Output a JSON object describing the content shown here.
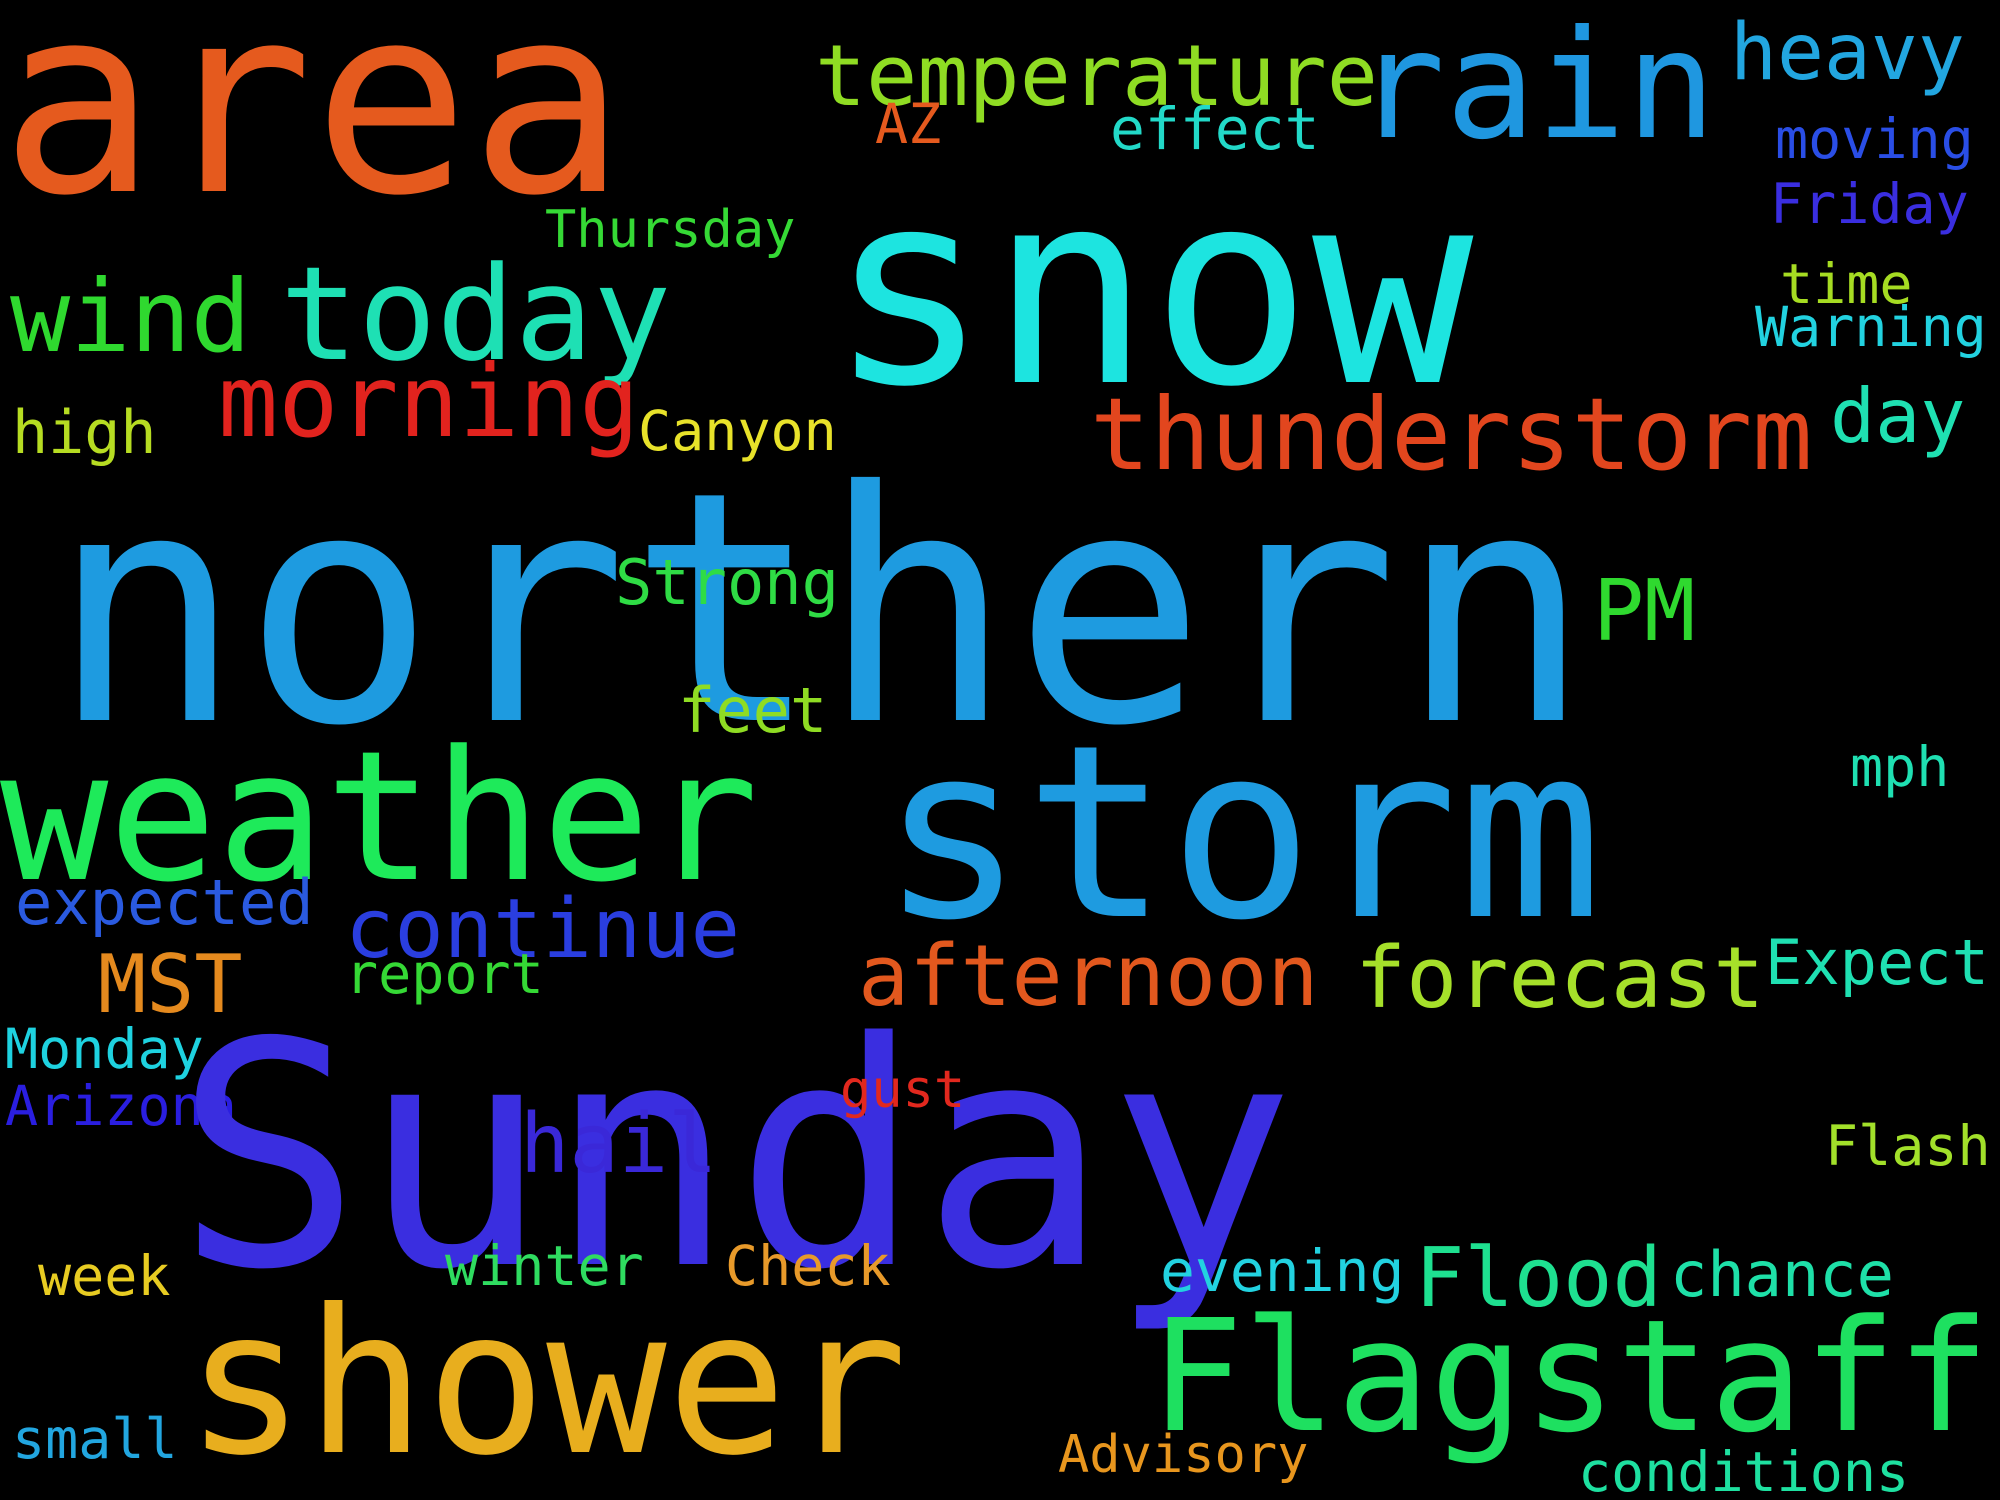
{
  "background_color": "#000000",
  "words": [
    {
      "text": "area",
      "color": "#e55a1e"
    },
    {
      "text": "snow",
      "color": "#1de4e0"
    },
    {
      "text": "temperature",
      "color": "#8fdc23"
    },
    {
      "text": "rain",
      "color": "#1f97e0"
    },
    {
      "text": "heavy",
      "color": "#22a6e0"
    },
    {
      "text": "AZ",
      "color": "#e55a1e"
    },
    {
      "text": "effect",
      "color": "#22d9c8"
    },
    {
      "text": "moving",
      "color": "#2a4ee6"
    },
    {
      "text": "Friday",
      "color": "#3a2ee0"
    },
    {
      "text": "Thursday",
      "color": "#35d935"
    },
    {
      "text": "today",
      "color": "#1ee0b4"
    },
    {
      "text": "wind",
      "color": "#2fd92f"
    },
    {
      "text": "time",
      "color": "#a6dc22"
    },
    {
      "text": "Warning",
      "color": "#22d2e0"
    },
    {
      "text": "morning",
      "color": "#e2231e"
    },
    {
      "text": "thunderstorm",
      "color": "#e2461e"
    },
    {
      "text": "day",
      "color": "#1fe0b2"
    },
    {
      "text": "high",
      "color": "#b6dc22"
    },
    {
      "text": "Canyon",
      "color": "#e8e22a"
    },
    {
      "text": "northern",
      "color": "#1e9be0"
    },
    {
      "text": "Strong",
      "color": "#2fdc45"
    },
    {
      "text": "PM",
      "color": "#2fd92f"
    },
    {
      "text": "feet",
      "color": "#8fdc23"
    },
    {
      "text": "mph",
      "color": "#1fe0b2"
    },
    {
      "text": "weather",
      "color": "#1eea5a"
    },
    {
      "text": "storm",
      "color": "#1e9be0"
    },
    {
      "text": "expected",
      "color": "#2a5ae0"
    },
    {
      "text": "continue",
      "color": "#2a3ee0"
    },
    {
      "text": "MST",
      "color": "#e58a1e"
    },
    {
      "text": "afternoon",
      "color": "#e2581e"
    },
    {
      "text": "forecast",
      "color": "#a6e02a"
    },
    {
      "text": "report",
      "color": "#35d935"
    },
    {
      "text": "Expect",
      "color": "#1fe0b2"
    },
    {
      "text": "Monday",
      "color": "#1ed2e0"
    },
    {
      "text": "Arizona",
      "color": "#2a1ee0"
    },
    {
      "text": "Sunday",
      "color": "#3a2ee0"
    },
    {
      "text": "gust",
      "color": "#e2281e"
    },
    {
      "text": "hail",
      "color": "#3a28d8"
    },
    {
      "text": "Flash",
      "color": "#a2e02a"
    },
    {
      "text": "week",
      "color": "#e8cc22"
    },
    {
      "text": "winter",
      "color": "#2fdc60"
    },
    {
      "text": "Check",
      "color": "#e89a2a"
    },
    {
      "text": "evening",
      "color": "#22d2e0"
    },
    {
      "text": "Flood",
      "color": "#1ee090"
    },
    {
      "text": "chance",
      "color": "#1ee0a8"
    },
    {
      "text": "shower",
      "color": "#e8ae1e"
    },
    {
      "text": "Flagstaff",
      "color": "#1ee060"
    },
    {
      "text": "small",
      "color": "#22a6e0"
    },
    {
      "text": "Advisory",
      "color": "#e8961e"
    },
    {
      "text": "conditions",
      "color": "#1ee0a0"
    }
  ]
}
